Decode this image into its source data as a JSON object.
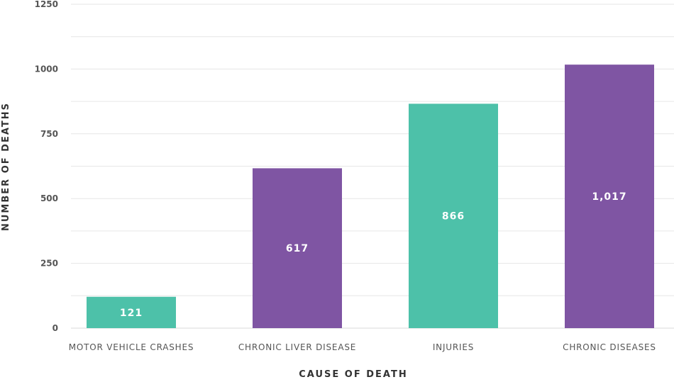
{
  "chart_data": {
    "type": "bar",
    "title": "",
    "xlabel": "CAUSE OF DEATH",
    "ylabel": "NUMBER OF DEATHS",
    "categories": [
      "MOTOR VEHICLE CRASHES",
      "CHRONIC LIVER DISEASE",
      "INJURIES",
      "CHRONIC DISEASES"
    ],
    "values": [
      121,
      617,
      866,
      1017
    ],
    "data_labels": [
      "121",
      "617",
      "866",
      "1,017"
    ],
    "colors": [
      "#4dc1a9",
      "#7f55a3",
      "#4dc1a9",
      "#7f55a3"
    ],
    "ylim": [
      0,
      1250
    ],
    "yticks": [
      0,
      250,
      500,
      750,
      1000,
      1250
    ],
    "ytick_labels": [
      "0",
      "250",
      "500",
      "750",
      "1000",
      "1250"
    ],
    "grid": true,
    "minor_grid_step": 125
  }
}
